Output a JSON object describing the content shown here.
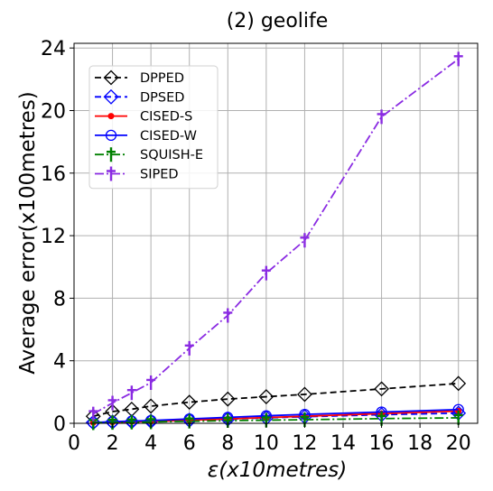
{
  "chart_data": {
    "type": "line",
    "title": "(2) geolife",
    "xlabel_symbol": "ε",
    "xlabel_unit": "(x10metres)",
    "ylabel": "Average error(x100metres)",
    "xlim": [
      0,
      21
    ],
    "ylim": [
      0,
      24.3
    ],
    "xticks": [
      0,
      2,
      4,
      6,
      8,
      10,
      12,
      14,
      16,
      18,
      20
    ],
    "yticks": [
      0,
      4,
      8,
      12,
      16,
      20,
      24
    ],
    "grid": true,
    "legend_position": "top-left",
    "x": [
      1,
      2,
      3,
      4,
      6,
      8,
      10,
      12,
      16,
      20
    ],
    "series": [
      {
        "name": "DPPED",
        "color": "#000000",
        "dash": "dashed",
        "marker": "diamond-open",
        "values": [
          0.45,
          0.75,
          0.9,
          1.1,
          1.35,
          1.55,
          1.7,
          1.85,
          2.2,
          2.55
        ]
      },
      {
        "name": "DPSED",
        "color": "#0000ff",
        "dash": "dashed",
        "marker": "diamond-open",
        "values": [
          0.05,
          0.08,
          0.1,
          0.13,
          0.2,
          0.27,
          0.35,
          0.42,
          0.55,
          0.65
        ]
      },
      {
        "name": "CISED-S",
        "color": "#ff0000",
        "dash": "solid",
        "marker": "dot",
        "values": [
          0.04,
          0.07,
          0.1,
          0.12,
          0.2,
          0.28,
          0.37,
          0.45,
          0.62,
          0.78
        ]
      },
      {
        "name": "CISED-W",
        "color": "#0000ff",
        "dash": "solid",
        "marker": "circle-open",
        "values": [
          0.05,
          0.1,
          0.14,
          0.18,
          0.28,
          0.38,
          0.48,
          0.57,
          0.72,
          0.88
        ]
      },
      {
        "name": "SQUISH-E",
        "color": "#008000",
        "dash": "dashdot",
        "marker": "dagger",
        "values": [
          0.03,
          0.05,
          0.07,
          0.09,
          0.13,
          0.17,
          0.2,
          0.23,
          0.3,
          0.35
        ]
      },
      {
        "name": "SIPED",
        "color": "#8a2be2",
        "dash": "dashdot",
        "marker": "dagger",
        "values": [
          0.6,
          1.3,
          1.95,
          2.6,
          4.8,
          6.9,
          9.6,
          11.7,
          19.6,
          23.3
        ]
      }
    ]
  }
}
